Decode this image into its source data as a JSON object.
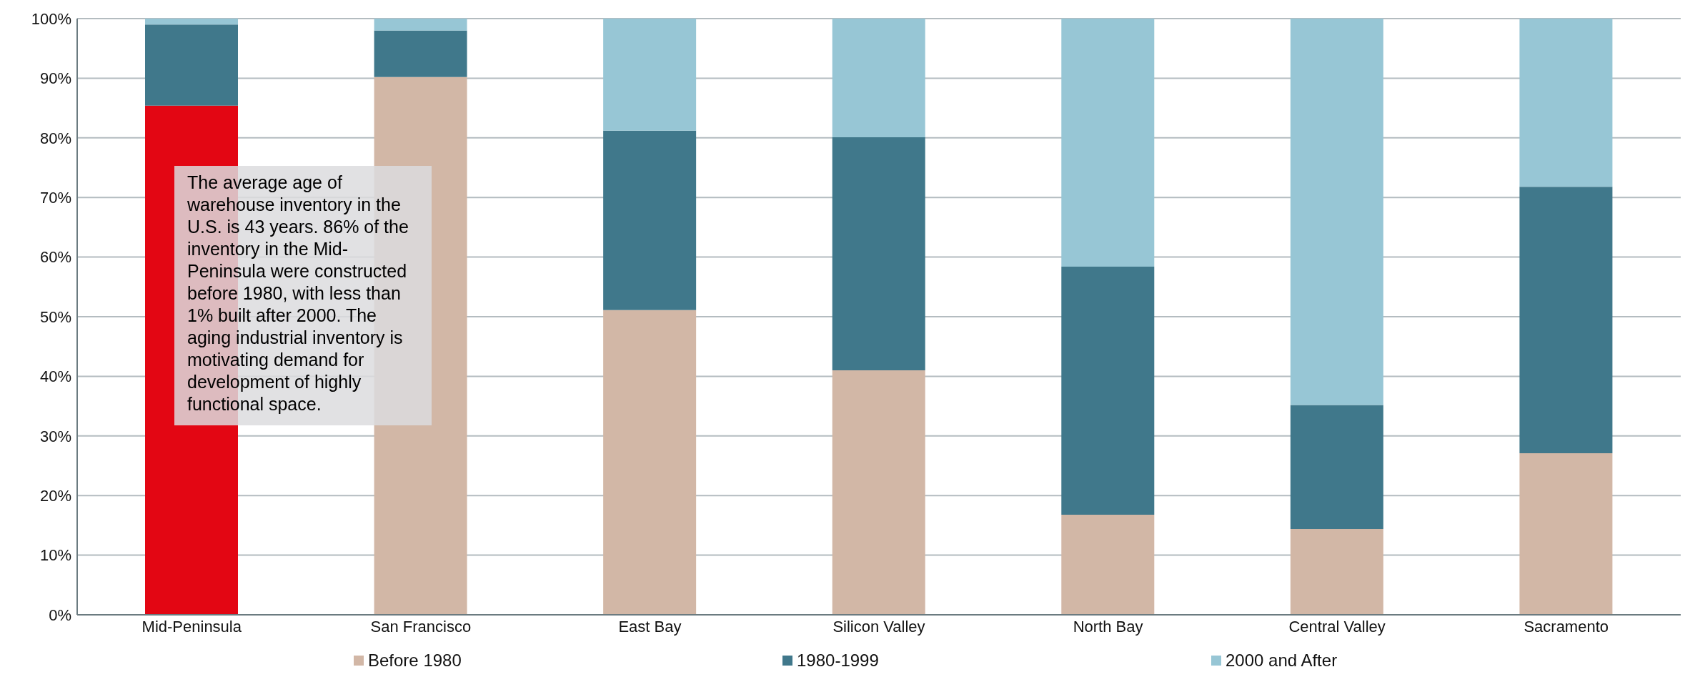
{
  "chart_data": {
    "type": "bar",
    "stacked": true,
    "categories": [
      "Mid-Peninsula",
      "San Francisco",
      "East Bay",
      "Silicon Valley",
      "North Bay",
      "Central Valley",
      "Sacramento"
    ],
    "series": [
      {
        "name": "Before 1980",
        "color": "#d2b7a6",
        "colors": [
          "#e30613",
          "#d2b7a6",
          "#d2b7a6",
          "#d2b7a6",
          "#d2b7a6",
          "#d2b7a6",
          "#d2b7a6"
        ],
        "values": [
          85.4,
          90.2,
          51.1,
          41.0,
          16.8,
          14.4,
          27.1
        ]
      },
      {
        "name": "1980-1999",
        "color": "#40788b",
        "values": [
          13.6,
          7.8,
          30.1,
          39.1,
          41.6,
          20.8,
          44.7
        ]
      },
      {
        "name": "2000 and After",
        "color": "#97c6d5",
        "values": [
          1.0,
          2.0,
          18.8,
          19.9,
          41.6,
          64.8,
          28.2
        ]
      }
    ],
    "ylim": [
      0,
      100
    ],
    "yticks": [
      {
        "value": 0,
        "label": "0%"
      },
      {
        "value": 10,
        "label": "10%"
      },
      {
        "value": 20,
        "label": "20%"
      },
      {
        "value": 30,
        "label": "30%"
      },
      {
        "value": 40,
        "label": "40%"
      },
      {
        "value": 50,
        "label": "50%"
      },
      {
        "value": 60,
        "label": "60%"
      },
      {
        "value": 70,
        "label": "70%"
      },
      {
        "value": 80,
        "label": "80%"
      },
      {
        "value": 90,
        "label": "90%"
      },
      {
        "value": 100,
        "label": "100%"
      }
    ],
    "grid": "y",
    "legend": "bottom",
    "annotations": [
      "The average age of warehouse inventory in the U.S. is 43 years. 86% of the inventory in the Mid-Peninsula were constructed before 1980, with less than 1% built after 2000. The aging industrial inventory is motivating demand for development of highly functional space."
    ]
  }
}
